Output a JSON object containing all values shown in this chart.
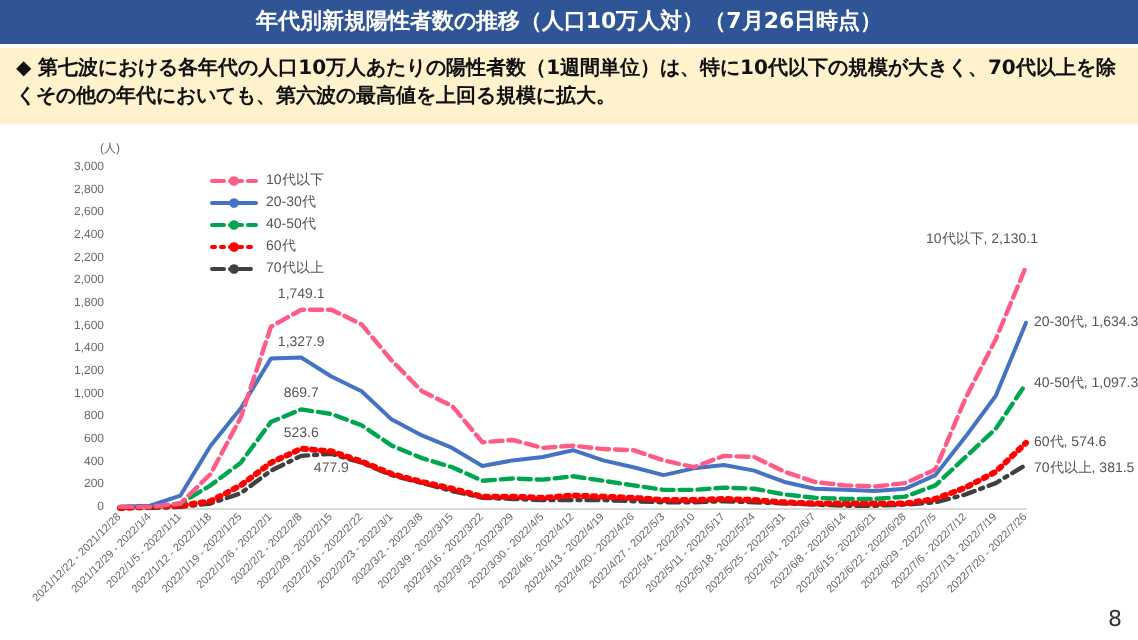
{
  "chart_data": {
    "type": "line",
    "title": "年代別新規陽性者数の推移（人口10万人対）（7月26日時点）",
    "subtitle": "◆ 第七波における各年代の人口10万人あたりの陽性者数（1週間単位）は、特に10代以下の規模が大きく、70代以上を除くその他の年代においても、第六波の最高値を上回る規模に拡大。",
    "ylabel": "(人)",
    "annotations": [
      "8"
    ],
    "categories": [
      "2021/12/22 - 2021/12/28",
      "2021/12/29 - 2022/1/4",
      "2022/1/5 - 2022/1/11",
      "2022/1/12 - 2022/1/18",
      "2022/1/19 - 2022/1/25",
      "2022/1/26 - 2022/2/1",
      "2022/2/2 - 2022/2/8",
      "2022/2/9 - 2022/2/15",
      "2022/2/16 - 2022/2/22",
      "2022/2/23 - 2022/3/1",
      "2022/3/2 - 2022/3/8",
      "2022/3/9 - 2022/3/15",
      "2022/3/16 - 2022/3/22",
      "2022/3/23 - 2022/3/29",
      "2022/3/30 - 2022/4/5",
      "2022/4/6 - 2022/4/12",
      "2022/4/13 - 2022/4/19",
      "2022/4/20 - 2022/4/26",
      "2022/4/27 - 2022/5/3",
      "2022/5/4 - 2022/5/10",
      "2022/5/11 - 2022/5/17",
      "2022/5/18 - 2022/5/24",
      "2022/5/25 - 2022/5/31",
      "2022/6/1 - 2022/6/7",
      "2022/6/8 - 2022/6/14",
      "2022/6/15 - 2022/6/21",
      "2022/6/22 - 2022/6/28",
      "2022/6/29 - 2022/7/5",
      "2022/7/6 - 2022/7/12",
      "2022/7/13 - 2022/7/19",
      "2022/7/20 - 2022/7/26"
    ],
    "series": [
      {
        "name": "10代以下",
        "color": "#ff5b87",
        "line_style": "dashed",
        "values": [
          10,
          10,
          40,
          300,
          800,
          1600,
          1749.1,
          1750,
          1620,
          1300,
          1030,
          900,
          580,
          600,
          530,
          550,
          520,
          510,
          420,
          360,
          460,
          450,
          320,
          230,
          200,
          190,
          220,
          340,
          970,
          1490,
          2130.1
        ],
        "value_labels": [
          null,
          null,
          null,
          null,
          null,
          null,
          "1,749.1",
          null,
          null,
          null,
          null,
          null,
          null,
          null,
          null,
          null,
          null,
          null,
          null,
          null,
          null,
          null,
          null,
          null,
          null,
          null,
          null,
          null,
          null,
          null,
          "10代以下, 2,130.1"
        ]
      },
      {
        "name": "20-30代",
        "color": "#4472c4",
        "line_style": "solid",
        "values": [
          10,
          20,
          110,
          550,
          880,
          1320,
          1327.9,
          1160,
          1030,
          780,
          640,
          530,
          370,
          420,
          450,
          510,
          420,
          360,
          290,
          350,
          380,
          330,
          230,
          170,
          160,
          150,
          170,
          290,
          630,
          990,
          1634.3
        ],
        "value_labels": [
          null,
          null,
          null,
          null,
          null,
          null,
          "1,327.9",
          null,
          null,
          null,
          null,
          null,
          null,
          null,
          null,
          null,
          null,
          null,
          null,
          null,
          null,
          null,
          null,
          null,
          null,
          null,
          null,
          null,
          null,
          null,
          "20-30代, 1,634.3"
        ]
      },
      {
        "name": "40-50代",
        "color": "#00a64f",
        "line_style": "dashed",
        "values": [
          10,
          10,
          40,
          200,
          400,
          760,
          869.7,
          830,
          730,
          550,
          440,
          360,
          240,
          260,
          250,
          280,
          240,
          200,
          160,
          160,
          180,
          170,
          120,
          90,
          80,
          80,
          100,
          200,
          450,
          700,
          1097.3
        ],
        "value_labels": [
          null,
          null,
          null,
          null,
          null,
          null,
          "869.7",
          null,
          null,
          null,
          null,
          null,
          null,
          null,
          null,
          null,
          null,
          null,
          null,
          null,
          null,
          null,
          null,
          null,
          null,
          null,
          null,
          null,
          null,
          null,
          "40-50代, 1,097.3"
        ]
      },
      {
        "name": "60代",
        "color": "#ff0000",
        "line_style": "dotted",
        "values": [
          0,
          10,
          20,
          60,
          200,
          400,
          523.6,
          500,
          410,
          300,
          230,
          170,
          100,
          100,
          90,
          110,
          100,
          90,
          70,
          70,
          80,
          70,
          50,
          40,
          40,
          40,
          40,
          80,
          180,
          320,
          574.6
        ],
        "value_labels": [
          null,
          null,
          null,
          null,
          null,
          null,
          "523.6",
          null,
          null,
          null,
          null,
          null,
          null,
          null,
          null,
          null,
          null,
          null,
          null,
          null,
          null,
          null,
          null,
          null,
          null,
          null,
          null,
          null,
          null,
          null,
          "60代, 574.6"
        ]
      },
      {
        "name": "70代以上",
        "color": "#404040",
        "line_style": "dashdot",
        "values": [
          0,
          0,
          10,
          40,
          130,
          330,
          460,
          477.9,
          400,
          290,
          220,
          150,
          90,
          80,
          70,
          70,
          70,
          60,
          50,
          50,
          60,
          50,
          40,
          30,
          20,
          20,
          30,
          50,
          120,
          220,
          381.5
        ],
        "value_labels": [
          null,
          null,
          null,
          null,
          null,
          null,
          null,
          "477.9",
          null,
          null,
          null,
          null,
          null,
          null,
          null,
          null,
          null,
          null,
          null,
          null,
          null,
          null,
          null,
          null,
          null,
          null,
          null,
          null,
          null,
          null,
          "70代以上, 381.5"
        ]
      }
    ],
    "ylim": [
      0,
      3000
    ],
    "yticks": [
      0,
      200,
      400,
      600,
      800,
      {
        "value": 1000,
        "label": "1,000"
      },
      {
        "value": 1200,
        "label": "1,200"
      },
      {
        "value": 1400,
        "label": "1,400"
      },
      {
        "value": 1600,
        "label": "1,600"
      },
      {
        "value": 1800,
        "label": "1,800"
      },
      {
        "value": 2000,
        "label": "2,000"
      },
      {
        "value": 2200,
        "label": "2,200"
      },
      {
        "value": 2400,
        "label": "2,400"
      },
      {
        "value": 2600,
        "label": "2,600"
      },
      {
        "value": 2800,
        "label": "2,800"
      },
      {
        "value": 3000,
        "label": "3,000"
      }
    ],
    "legend": "top left",
    "marker": "none",
    "grid": false
  }
}
